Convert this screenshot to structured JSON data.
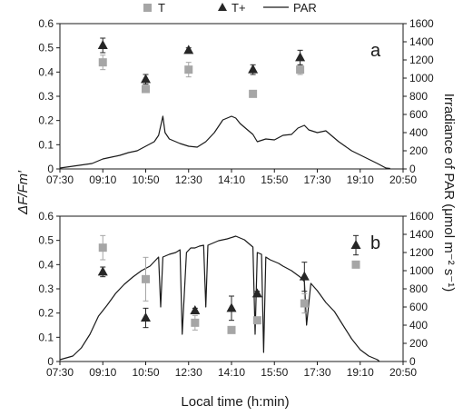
{
  "chart_data": [
    {
      "type": "scatter",
      "panel_label": "a",
      "x_categories": [
        "07:30",
        "09:10",
        "10:50",
        "12:30",
        "14:10",
        "15:50",
        "17:30",
        "19:10",
        "20:50"
      ],
      "xlabel": "Local time (h:min)",
      "ylabel": "ΔF/Fm′",
      "ylabel2": "Irradiance of PAR (μmol m⁻² s⁻¹)",
      "ylim": [
        0,
        0.6
      ],
      "y_ticks": [
        "0",
        "0.1",
        "0.2",
        "0.3",
        "0.4",
        "0.5",
        "0.6"
      ],
      "ylim2": [
        0,
        1600
      ],
      "y2_ticks": [
        "0",
        "200",
        "400",
        "600",
        "800",
        "1000",
        "1200",
        "1400",
        "1600"
      ],
      "series": [
        {
          "name": "T",
          "marker": "square",
          "color": "#a6a6a6",
          "x": [
            "09:10",
            "10:50",
            "12:30",
            "15:00",
            "16:50"
          ],
          "y": [
            0.44,
            0.33,
            0.41,
            0.31,
            0.41
          ],
          "err": [
            0.03,
            0.01,
            0.03,
            0.01,
            0.02
          ]
        },
        {
          "name": "T+",
          "marker": "triangle",
          "color": "#262626",
          "x": [
            "09:10",
            "10:50",
            "12:30",
            "15:00",
            "16:50"
          ],
          "y": [
            0.51,
            0.37,
            0.49,
            0.41,
            0.46
          ],
          "err": [
            0.03,
            0.02,
            0.01,
            0.02,
            0.03
          ]
        },
        {
          "name": "PAR",
          "type": "line",
          "axis": "right",
          "color": "#1a1a1a",
          "x": [
            "07:30",
            "08:00",
            "08:45",
            "09:10",
            "09:30",
            "09:50",
            "10:10",
            "10:30",
            "10:50",
            "11:10",
            "11:20",
            "11:30",
            "11:35",
            "11:45",
            "12:10",
            "12:30",
            "12:50",
            "13:10",
            "13:30",
            "13:50",
            "14:10",
            "14:20",
            "14:30",
            "14:45",
            "15:00",
            "15:10",
            "15:30",
            "15:50",
            "16:10",
            "16:30",
            "16:45",
            "17:00",
            "17:10",
            "17:30",
            "17:50",
            "18:20",
            "18:50",
            "19:20",
            "19:50",
            "20:10",
            "20:20"
          ],
          "y": [
            10,
            30,
            60,
            110,
            130,
            150,
            180,
            200,
            250,
            300,
            370,
            580,
            400,
            330,
            280,
            250,
            240,
            300,
            400,
            540,
            580,
            560,
            500,
            440,
            380,
            300,
            330,
            320,
            370,
            380,
            450,
            480,
            430,
            400,
            420,
            300,
            200,
            130,
            60,
            10,
            5
          ]
        }
      ]
    },
    {
      "type": "scatter",
      "panel_label": "b",
      "x_categories": [
        "07:30",
        "09:10",
        "10:50",
        "12:30",
        "14:10",
        "15:50",
        "17:30",
        "19:10",
        "20:50"
      ],
      "xlabel": "Local time (h:min)",
      "ylim": [
        0,
        0.6
      ],
      "y_ticks": [
        "0",
        "0.1",
        "0.2",
        "0.3",
        "0.4",
        "0.5",
        "0.6"
      ],
      "ylim2": [
        0,
        1600
      ],
      "y2_ticks": [
        "0",
        "200",
        "400",
        "600",
        "800",
        "1000",
        "1200",
        "1400",
        "1600"
      ],
      "series": [
        {
          "name": "T",
          "marker": "square",
          "color": "#a6a6a6",
          "x": [
            "09:10",
            "10:50",
            "12:45",
            "14:10",
            "15:10",
            "17:00",
            "19:00"
          ],
          "y": [
            0.47,
            0.34,
            0.16,
            0.13,
            0.17,
            0.24,
            0.4
          ],
          "err": [
            0.05,
            0.09,
            0.03,
            0.01,
            0.01,
            0.04,
            0.01
          ]
        },
        {
          "name": "T+",
          "marker": "triangle",
          "color": "#262626",
          "x": [
            "09:10",
            "10:50",
            "12:45",
            "14:10",
            "15:10",
            "17:00",
            "19:00"
          ],
          "y": [
            0.37,
            0.18,
            0.21,
            0.22,
            0.28,
            0.35,
            0.48
          ],
          "err": [
            0.02,
            0.04,
            0.01,
            0.05,
            0.01,
            0.06,
            0.04
          ]
        },
        {
          "name": "PAR",
          "type": "line",
          "axis": "right",
          "color": "#1a1a1a",
          "x": [
            "07:30",
            "08:00",
            "08:20",
            "08:40",
            "09:00",
            "09:20",
            "09:40",
            "10:00",
            "10:20",
            "10:40",
            "11:00",
            "11:20",
            "11:25",
            "11:30",
            "11:45",
            "12:00",
            "12:10",
            "12:15",
            "12:25",
            "12:35",
            "12:45",
            "12:55",
            "13:05",
            "13:10",
            "13:15",
            "13:25",
            "13:40",
            "14:00",
            "14:20",
            "14:40",
            "15:00",
            "15:05",
            "15:10",
            "15:20",
            "15:25",
            "15:30",
            "15:40",
            "15:50",
            "16:00",
            "16:10",
            "16:30",
            "16:50",
            "17:00",
            "17:05",
            "17:15",
            "17:30",
            "17:50",
            "18:10",
            "18:30",
            "18:50",
            "19:10",
            "19:30",
            "19:50",
            "19:55"
          ],
          "y": [
            20,
            60,
            150,
            300,
            500,
            620,
            750,
            850,
            930,
            1000,
            1050,
            1150,
            600,
            1150,
            1180,
            1200,
            1230,
            300,
            1200,
            1250,
            1250,
            1270,
            1280,
            600,
            1280,
            1300,
            1330,
            1350,
            1380,
            1340,
            1260,
            300,
            1200,
            1180,
            100,
            1150,
            1120,
            1100,
            1080,
            1050,
            1000,
            930,
            880,
            400,
            860,
            780,
            650,
            550,
            400,
            250,
            130,
            60,
            20,
            0
          ]
        }
      ]
    }
  ]
}
